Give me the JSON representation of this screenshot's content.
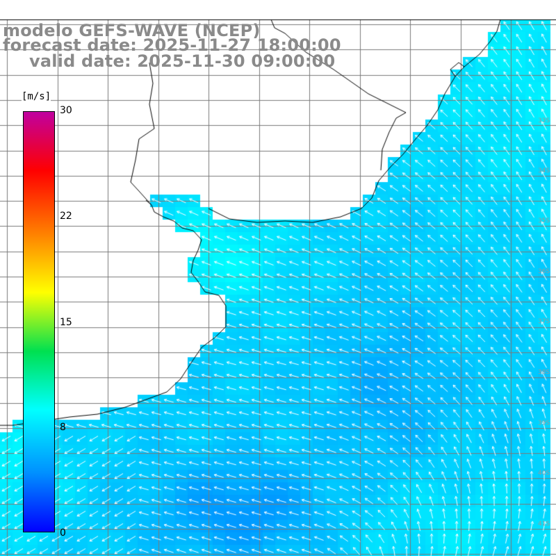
{
  "title": {
    "model": "modelo GEFS-WAVE (NCEP)",
    "forecast": "forecast date: 2025-11-27 18:00:00",
    "valid": "valid date: 2025-11-30 09:00:00"
  },
  "colorbar": {
    "unit": "[m/s]",
    "ticks": [
      "30",
      "22",
      "15",
      "8",
      "0"
    ],
    "stops": [
      "#0000ff",
      "#0090ff",
      "#00ffff",
      "#00e050",
      "#ffff00",
      "#ff8000",
      "#ff0000",
      "#c000a0"
    ]
  },
  "map_labels": {
    "lat": [
      "33S",
      "34S",
      "35S",
      "36S",
      "37S",
      "38S",
      "39S",
      "40S",
      "41S"
    ]
  },
  "colors": {
    "land": "#ffffff",
    "grid": "#7a7a7a",
    "coast": "#000000",
    "arrow": "#ffffff"
  }
}
